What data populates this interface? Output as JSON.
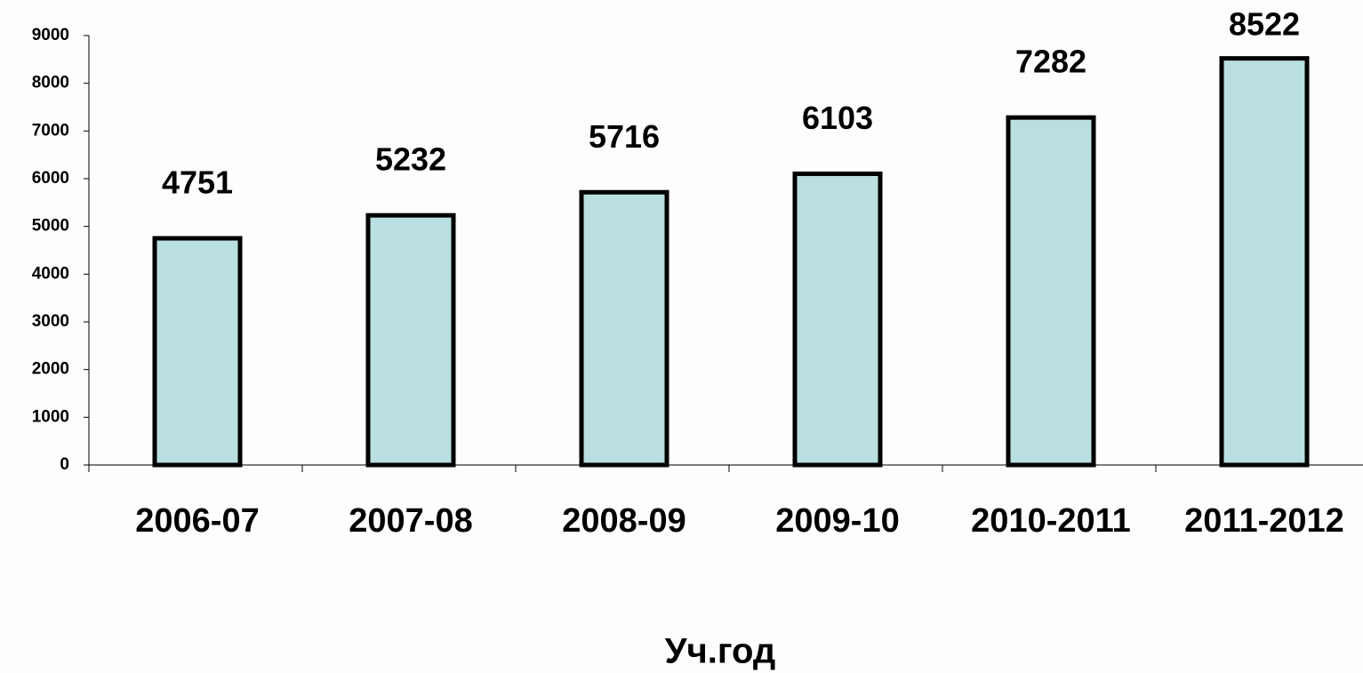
{
  "chart_data": {
    "type": "bar",
    "categories": [
      "2006-07",
      "2007-08",
      "2008-09",
      "2009-10",
      "2010-2011",
      "2011-2012"
    ],
    "values": [
      4751,
      5232,
      5716,
      6103,
      7282,
      8522
    ],
    "color": "#b9dfe0",
    "x_label": "Уч.год",
    "ylim": [
      0,
      9000
    ],
    "yticks": [
      0,
      1000,
      2000,
      3000,
      4000,
      5000,
      6000,
      7000,
      8000,
      9000
    ],
    "grid": false
  }
}
